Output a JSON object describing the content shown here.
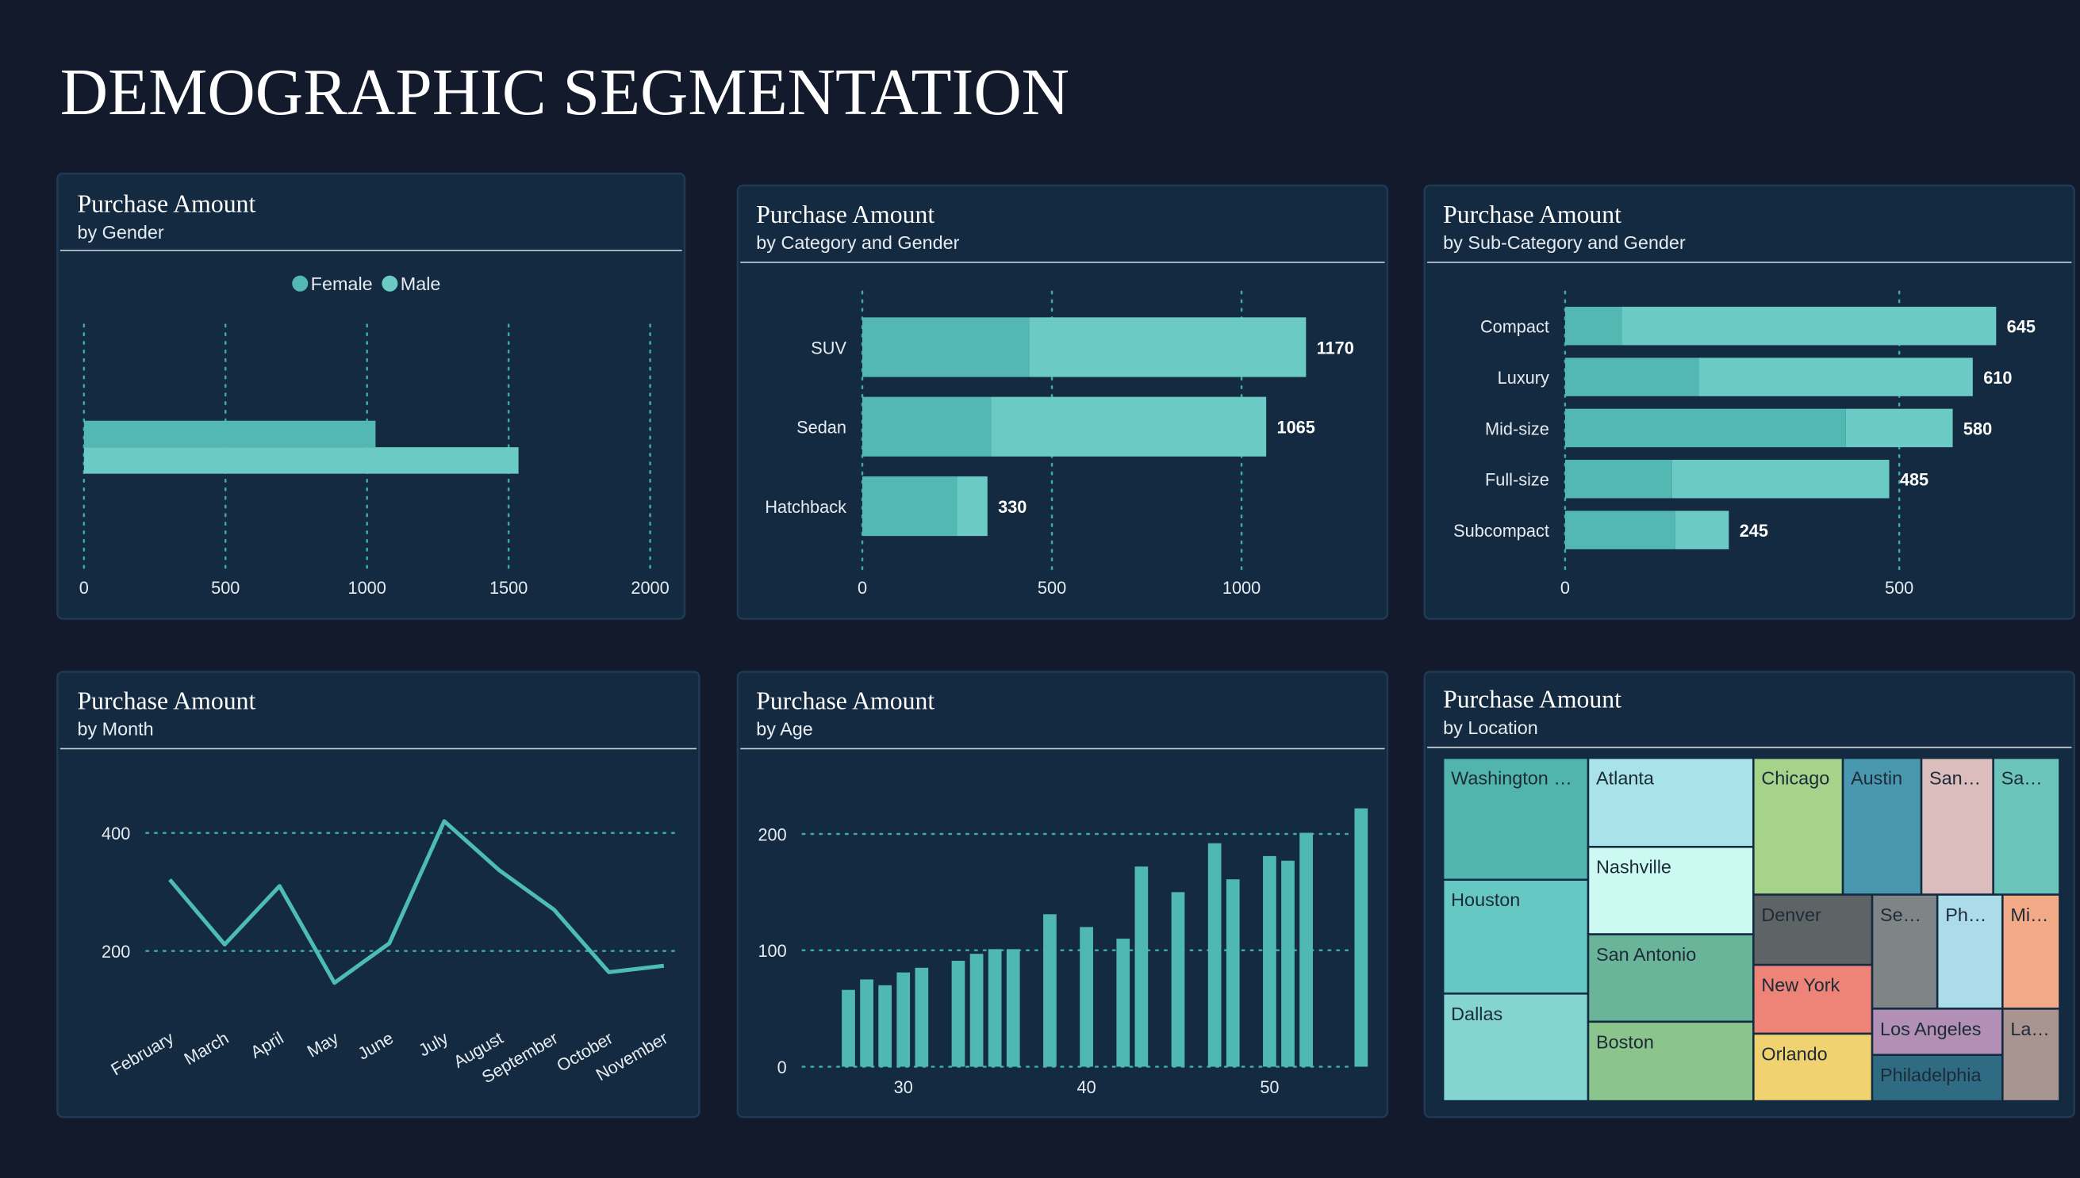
{
  "title": "DEMOGRAPHIC SEGMENTATION",
  "chart_data": [
    {
      "type": "bar",
      "orientation": "horizontal",
      "title": "Purchase Amount",
      "subtitle": "by Gender",
      "series": [
        {
          "name": "Female",
          "color": "#52b8b1",
          "values": [
            1030
          ]
        },
        {
          "name": "Male",
          "color": "#6ccac4",
          "values": [
            1535
          ]
        }
      ],
      "xlim": [
        0,
        2000
      ],
      "xticks": [
        0,
        500,
        1000,
        1500,
        2000
      ],
      "grid": true,
      "legend": "top"
    },
    {
      "type": "bar",
      "orientation": "horizontal",
      "stacked": true,
      "title": "Purchase Amount",
      "subtitle": "by Category and Gender",
      "categories": [
        "SUV",
        "Sedan",
        "Hatchback"
      ],
      "series": [
        {
          "name": "Female",
          "color": "#52b8b1",
          "values": [
            440,
            340,
            250
          ]
        },
        {
          "name": "Male",
          "color": "#6ccac4",
          "values": [
            730,
            725,
            80
          ]
        }
      ],
      "totals": [
        1170,
        1065,
        330
      ],
      "xlim": [
        0,
        1250
      ],
      "xticks": [
        0,
        500,
        1000
      ],
      "grid": true
    },
    {
      "type": "bar",
      "orientation": "horizontal",
      "stacked": true,
      "title": "Purchase Amount",
      "subtitle": "by Sub-Category and Gender",
      "categories": [
        "Compact",
        "Luxury",
        "Mid-size",
        "Full-size",
        "Subcompact"
      ],
      "series": [
        {
          "name": "Female",
          "color": "#52b8b1",
          "values": [
            85,
            200,
            420,
            160,
            165
          ]
        },
        {
          "name": "Male",
          "color": "#6ccac4",
          "values": [
            560,
            410,
            160,
            325,
            80
          ]
        }
      ],
      "totals": [
        645,
        610,
        580,
        485,
        245
      ],
      "xlim": [
        0,
        750
      ],
      "xticks": [
        0,
        500
      ],
      "grid": true
    },
    {
      "type": "line",
      "title": "Purchase Amount",
      "subtitle": "by Month",
      "categories": [
        "February",
        "March",
        "April",
        "May",
        "June",
        "July",
        "August",
        "September",
        "October",
        "November"
      ],
      "values": [
        321,
        211,
        310,
        146,
        213,
        420,
        337,
        270,
        164,
        175
      ],
      "color": "#4dbcb4",
      "ylim": [
        60,
        480
      ],
      "yticks": [
        200,
        400
      ],
      "grid": true
    },
    {
      "type": "bar",
      "orientation": "vertical",
      "title": "Purchase Amount",
      "subtitle": "by Age",
      "x": [
        27,
        28,
        29,
        30,
        31,
        33,
        34,
        35,
        36,
        38,
        40,
        42,
        43,
        45,
        47,
        48,
        50,
        51,
        52,
        55
      ],
      "values": [
        66,
        75,
        70,
        81,
        85,
        91,
        97,
        101,
        101,
        131,
        120,
        110,
        172,
        150,
        192,
        161,
        181,
        177,
        201,
        222
      ],
      "color": "#4fb8b2",
      "xlim": [
        24.5,
        56
      ],
      "xticks": [
        30,
        40,
        50
      ],
      "ylim": [
        0,
        230
      ],
      "yticks": [
        0,
        100,
        200
      ],
      "grid": true
    },
    {
      "type": "treemap",
      "title": "Purchase Amount",
      "subtitle": "by Location",
      "categories": [
        "Washington …",
        "Houston",
        "Dallas",
        "Atlanta",
        "Nashville",
        "San Antonio",
        "Boston",
        "Chicago",
        "Austin",
        "San…",
        "Sa…",
        "Denver",
        "New York",
        "Orlando",
        "Se…",
        "Ph…",
        "Mi…",
        "Los Angeles",
        "Philadelphia",
        "La…"
      ],
      "values": [
        214,
        200,
        189,
        178,
        175,
        175,
        159,
        148,
        130,
        119,
        110,
        101,
        99,
        97,
        90,
        90,
        79,
        73,
        73,
        64
      ],
      "colors": [
        "#52b5ad",
        "#66c8c3",
        "#84d4d2",
        "#a9e3ea",
        "#ccfaf3",
        "#6ab59a",
        "#8cc48d",
        "#a6d38a",
        "#4a97b0",
        "#dcbdbd",
        "#6cc5bb",
        "#5e6465",
        "#ee8478",
        "#f0d270",
        "#7f8587",
        "#acdbea",
        "#f2aa87",
        "#b290b5",
        "#2f6b82",
        "#a89491"
      ]
    }
  ]
}
